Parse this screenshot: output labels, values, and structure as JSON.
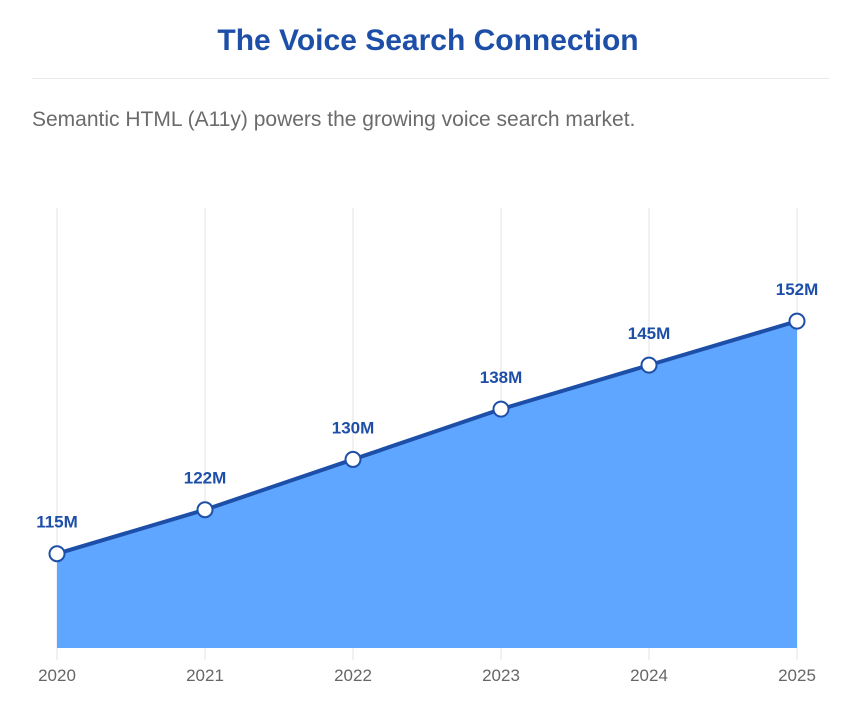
{
  "title": "The Voice Search Connection",
  "subtitle": "Semantic HTML (A11y) powers the growing voice search market.",
  "chart_data": {
    "type": "area",
    "categories": [
      "2020",
      "2021",
      "2022",
      "2023",
      "2024",
      "2025"
    ],
    "values": [
      115,
      122,
      130,
      138,
      145,
      152
    ],
    "data_labels": [
      "115M",
      "122M",
      "130M",
      "138M",
      "145M",
      "152M"
    ],
    "ylim": [
      100,
      170
    ],
    "grid": "vertical",
    "colors": {
      "fill": "#5ea6ff",
      "line": "#1e4fa8",
      "marker_fill": "#ffffff",
      "label": "#1e4fa8"
    }
  }
}
